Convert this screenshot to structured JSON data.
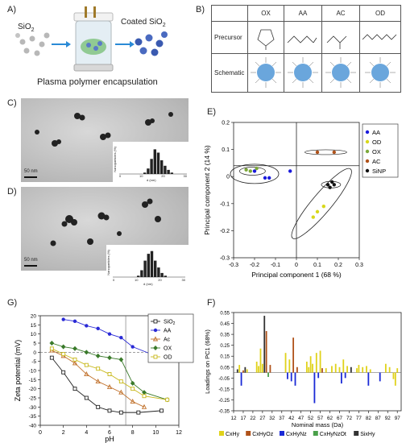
{
  "panels": {
    "a": {
      "label": "A)",
      "sio2": "SiO",
      "sio2_sub": "2",
      "coated": "Coated SiO",
      "coated_sub": "2",
      "caption": "Plasma polymer encapsulation"
    },
    "b": {
      "label": "B)",
      "columns": [
        "OX",
        "AA",
        "AC",
        "OD"
      ],
      "row_labels": [
        "Precursor",
        "Schematic"
      ]
    },
    "c": {
      "label": "C)",
      "scale": "50 nm",
      "inset_ylabel": "Nanoparticles (%)",
      "inset_xlabel": "d (nm)",
      "inset_ticks": [
        "0",
        "10",
        "20",
        "30"
      ]
    },
    "d": {
      "label": "D)",
      "scale": "50 nm",
      "inset_ylabel": "Nanoparticles (%)",
      "inset_xlabel": "d (nm)",
      "inset_ticks": [
        "0",
        "10",
        "20",
        "30"
      ]
    },
    "e": {
      "label": "E)"
    },
    "f": {
      "label": "F)"
    },
    "g": {
      "label": "G)"
    }
  },
  "chart_data": [
    {
      "id": "pca",
      "type": "scatter",
      "xlabel": "Principal component 1 (68 %)",
      "ylabel": "Principal component 2 (14 %)",
      "xlim": [
        -0.3,
        0.3
      ],
      "ylim": [
        -0.3,
        0.2
      ],
      "xticks": [
        "-0.3",
        "-0.2",
        "-0.1",
        "0",
        "0.1",
        "0.2",
        "0.3"
      ],
      "yticks": [
        "-0.3",
        "-0.2",
        "-0.1",
        "0",
        "0.1",
        "0.2"
      ],
      "grid": false,
      "legend_position": "right",
      "series": [
        {
          "name": "AA",
          "color": "#1a1adb",
          "points": [
            [
              -0.2,
              0.02
            ],
            [
              -0.13,
              -0.005
            ],
            [
              -0.15,
              -0.005
            ],
            [
              -0.03,
              0.02
            ]
          ]
        },
        {
          "name": "OD",
          "color": "#d8d81a",
          "points": [
            [
              0.1,
              -0.13
            ],
            [
              0.13,
              -0.11
            ],
            [
              0.08,
              -0.15
            ]
          ]
        },
        {
          "name": "OX",
          "color": "#7ca83a",
          "points": [
            [
              -0.24,
              0.025
            ],
            [
              -0.19,
              0.03
            ],
            [
              -0.22,
              0.02
            ]
          ]
        },
        {
          "name": "AC",
          "color": "#b0521a",
          "points": [
            [
              0.1,
              0.09
            ],
            [
              0.18,
              0.09
            ]
          ]
        },
        {
          "name": "SiNP",
          "color": "#111111",
          "points": [
            [
              0.15,
              -0.03
            ],
            [
              0.17,
              -0.02
            ],
            [
              0.18,
              -0.03
            ],
            [
              0.16,
              -0.04
            ]
          ]
        }
      ]
    },
    {
      "id": "zeta",
      "type": "line",
      "xlabel": "pH",
      "ylabel": "Zeta potential (mV)",
      "xlim": [
        0,
        12
      ],
      "ylim": [
        -40,
        20
      ],
      "xticks": [
        "0",
        "2",
        "4",
        "6",
        "8",
        "10",
        "12"
      ],
      "yticks": [
        "-40",
        "-35",
        "-30",
        "-25",
        "-20",
        "-15",
        "-10",
        "-5",
        "0",
        "5",
        "10",
        "15",
        "20"
      ],
      "grid": false,
      "legend_position": "top-right",
      "series": [
        {
          "name": "SiO",
          "name_sub": "2",
          "color": "#222222",
          "marker": "square",
          "x": [
            1,
            2,
            3,
            4,
            5,
            6,
            7,
            8.5,
            10.5
          ],
          "y": [
            -3,
            -11,
            -20,
            -25,
            -30,
            -32,
            -33,
            -33,
            -32
          ]
        },
        {
          "name": "AA",
          "color": "#2a2ad6",
          "marker": "circle",
          "x": [
            2,
            3,
            4,
            5,
            6,
            7,
            8,
            10
          ],
          "y": [
            18,
            17,
            14.5,
            13,
            10,
            8,
            3,
            -2
          ]
        },
        {
          "name": "Ac",
          "color": "#c0702a",
          "marker": "triangle",
          "x": [
            1,
            2,
            3,
            4,
            5,
            6,
            7,
            8,
            9
          ],
          "y": [
            1,
            -2,
            -6,
            -12,
            -16,
            -19,
            -22,
            -27,
            -30
          ]
        },
        {
          "name": "OX",
          "color": "#3a7a2a",
          "marker": "diamond",
          "x": [
            1,
            2,
            3,
            4,
            5,
            6,
            7,
            8,
            9,
            11
          ],
          "y": [
            5,
            3,
            2,
            0,
            -2,
            -3,
            -4,
            -17,
            -22,
            -26
          ]
        },
        {
          "name": "OD",
          "color": "#c8b81a",
          "marker": "square",
          "x": [
            1,
            2,
            3,
            4,
            5,
            6,
            7,
            8,
            9,
            11
          ],
          "y": [
            2,
            -1,
            -4,
            -7,
            -9,
            -12,
            -16,
            -20,
            -24,
            -26
          ]
        }
      ]
    },
    {
      "id": "loadings",
      "type": "bar",
      "xlabel": "Nominal mass (Da)",
      "ylabel": "Loadings on PC1 (68%)",
      "ylim": [
        -0.35,
        0.55
      ],
      "yticks": [
        "-0.35",
        "-0.25",
        "-0.15",
        "-0.05",
        "0.05",
        "0.15",
        "0.25",
        "0.35",
        "0.45",
        "0.55"
      ],
      "xticks": [
        "12",
        "17",
        "22",
        "27",
        "32",
        "37",
        "42",
        "47",
        "52",
        "57",
        "62",
        "67",
        "72",
        "77",
        "82",
        "87",
        "92",
        "97"
      ],
      "grid": false,
      "legend_position": "bottom",
      "series": [
        {
          "name": "CxHy",
          "color": "#e0d21a"
        },
        {
          "name": "CxHyOz",
          "color": "#b0521a"
        },
        {
          "name": "CxHyNz",
          "color": "#1a2ad6"
        },
        {
          "name": "CxHyNzOt",
          "color": "#4aa04a"
        },
        {
          "name": "SixHy",
          "color": "#333333"
        }
      ],
      "bars": [
        [
          14,
          0.03,
          4
        ],
        [
          15,
          0.07,
          0
        ],
        [
          16,
          -0.12,
          2
        ],
        [
          17,
          0.02,
          1
        ],
        [
          18,
          0.05,
          4
        ],
        [
          19,
          0.03,
          0
        ],
        [
          24,
          0.1,
          0
        ],
        [
          25,
          0.06,
          0
        ],
        [
          26,
          0.22,
          0
        ],
        [
          27,
          0.08,
          0
        ],
        [
          28,
          0.52,
          4
        ],
        [
          29,
          0.38,
          1
        ],
        [
          30,
          -0.04,
          3
        ],
        [
          31,
          0.07,
          1
        ],
        [
          39,
          0.18,
          0
        ],
        [
          40,
          -0.06,
          2
        ],
        [
          41,
          0.12,
          0
        ],
        [
          42,
          -0.08,
          2
        ],
        [
          43,
          0.32,
          1
        ],
        [
          44,
          -0.12,
          2
        ],
        [
          45,
          0.05,
          1
        ],
        [
          50,
          0.1,
          0
        ],
        [
          51,
          0.05,
          0
        ],
        [
          52,
          0.15,
          0
        ],
        [
          53,
          0.08,
          0
        ],
        [
          54,
          -0.28,
          2
        ],
        [
          55,
          0.18,
          0
        ],
        [
          56,
          -0.05,
          2
        ],
        [
          57,
          0.2,
          0
        ],
        [
          58,
          0.04,
          1
        ],
        [
          60,
          0.04,
          0
        ],
        [
          63,
          0.06,
          0
        ],
        [
          65,
          0.08,
          0
        ],
        [
          67,
          0.05,
          0
        ],
        [
          68,
          -0.1,
          2
        ],
        [
          69,
          0.12,
          0
        ],
        [
          70,
          -0.05,
          2
        ],
        [
          71,
          0.06,
          0
        ],
        [
          73,
          0.05,
          4
        ],
        [
          76,
          0.04,
          0
        ],
        [
          77,
          0.07,
          0
        ],
        [
          79,
          0.05,
          0
        ],
        [
          81,
          0.06,
          0
        ],
        [
          82,
          -0.12,
          2
        ],
        [
          83,
          0.03,
          0
        ],
        [
          88,
          -0.08,
          2
        ],
        [
          91,
          0.08,
          0
        ],
        [
          93,
          0.05,
          0
        ],
        [
          95,
          -0.06,
          0
        ],
        [
          96,
          -0.12,
          0
        ],
        [
          97,
          0.04,
          0
        ]
      ]
    }
  ]
}
